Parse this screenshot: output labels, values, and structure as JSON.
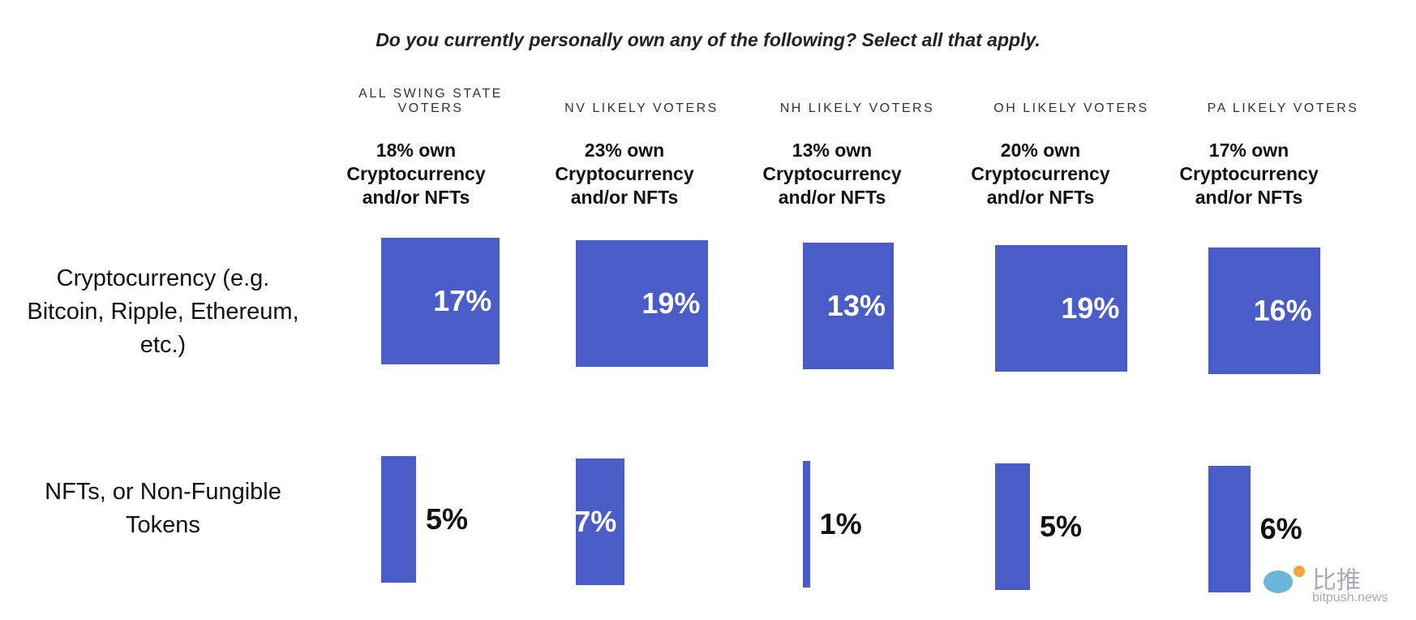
{
  "chart_data": {
    "type": "bar",
    "title": "Do you currently personally own any of the following? Select all that apply.",
    "categories": [
      "Cryptocurrency (e.g. Bitcoin, Ripple, Ethereum, etc.)",
      "NFTs, or Non-Fungible Tokens"
    ],
    "series": [
      {
        "name": "ALL SWING STATE VOTERS",
        "summary": "18% own Cryptocurrency and/or NFTs",
        "color": "#4a5cc8",
        "values": [
          17,
          5
        ],
        "value_labels": [
          "17%",
          "5%"
        ]
      },
      {
        "name": "NV LIKELY VOTERS",
        "summary": "23% own Cryptocurrency and/or NFTs",
        "color": "#4a5cc8",
        "values": [
          19,
          7
        ],
        "value_labels": [
          "19%",
          "7%"
        ]
      },
      {
        "name": "NH LIKELY VOTERS",
        "summary": "13% own Cryptocurrency and/or NFTs",
        "color": "#4a5cc8",
        "values": [
          13,
          1
        ],
        "value_labels": [
          "13%",
          "1%"
        ]
      },
      {
        "name": "OH LIKELY VOTERS",
        "summary": "20% own Cryptocurrency and/or NFTs",
        "color": "#4a5cc8",
        "values": [
          19,
          5
        ],
        "value_labels": [
          "19%",
          "5%"
        ]
      },
      {
        "name": "PA LIKELY VOTERS",
        "summary": "17% own Cryptocurrency and/or NFTs",
        "color": "#4a5cc8",
        "values": [
          16,
          6
        ],
        "value_labels": [
          "16%",
          "6%"
        ]
      }
    ],
    "watermark": {
      "name": "比推",
      "url": "bitpush.news"
    }
  }
}
